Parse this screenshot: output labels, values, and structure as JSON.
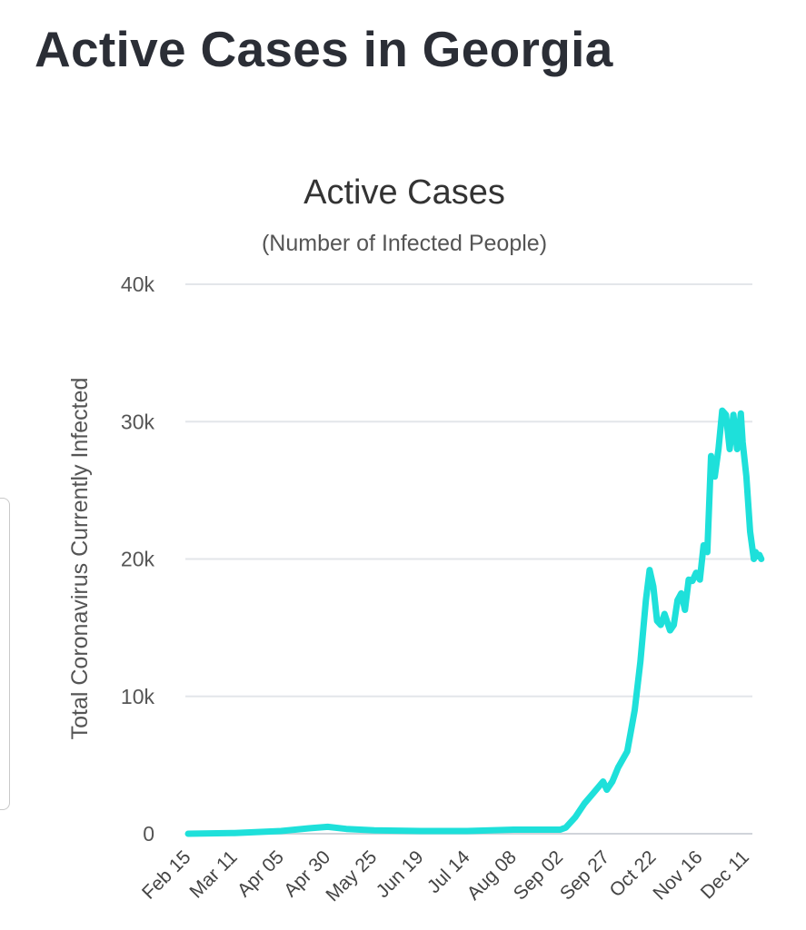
{
  "header": {
    "title": "Active Cases in Georgia"
  },
  "chart_data": {
    "type": "line",
    "title": "Active Cases",
    "subtitle": "(Number of Infected People)",
    "xlabel": "",
    "ylabel": "Total Coronavirus Currently Infected",
    "ylim": [
      0,
      40000
    ],
    "y_ticks": [
      0,
      10000,
      20000,
      30000,
      40000
    ],
    "y_tick_labels": [
      "0",
      "10k",
      "20k",
      "30k",
      "40k"
    ],
    "x_tick_labels": [
      "Feb 15",
      "Mar 11",
      "Apr 05",
      "Apr 30",
      "May 25",
      "Jun 19",
      "Jul 14",
      "Aug 08",
      "Sep 02",
      "Sep 27",
      "Oct 22",
      "Nov 16",
      "Dec 11"
    ],
    "grid": true,
    "legend": "none",
    "series": [
      {
        "color": "#1ee0da",
        "x": [
          "Feb 15",
          "Mar 11",
          "Apr 05",
          "Apr 20",
          "Apr 30",
          "May 10",
          "May 25",
          "Jun 19",
          "Jul 14",
          "Aug 08",
          "Aug 20",
          "Sep 02",
          "Sep 05",
          "Sep 10",
          "Sep 15",
          "Sep 20",
          "Sep 25",
          "Sep 27",
          "Sep 30",
          "Oct 03",
          "Oct 08",
          "Oct 12",
          "Oct 15",
          "Oct 18",
          "Oct 20",
          "Oct 22",
          "Oct 24",
          "Oct 26",
          "Oct 28",
          "Oct 31",
          "Nov 02",
          "Nov 04",
          "Nov 06",
          "Nov 08",
          "Nov 10",
          "Nov 12",
          "Nov 14",
          "Nov 16",
          "Nov 18",
          "Nov 20",
          "Nov 22",
          "Nov 24",
          "Nov 26",
          "Nov 28",
          "Nov 30",
          "Dec 02",
          "Dec 04",
          "Dec 06",
          "Dec 08",
          "Dec 09",
          "Dec 11",
          "Dec 13",
          "Dec 15",
          "Dec 16",
          "Dec 17",
          "Dec 18",
          "Dec 19"
        ],
        "values": [
          0,
          50,
          200,
          400,
          500,
          350,
          250,
          200,
          200,
          300,
          300,
          300,
          450,
          1200,
          2200,
          3000,
          3800,
          3200,
          3800,
          4800,
          6000,
          9000,
          12500,
          17000,
          19200,
          18000,
          15500,
          15200,
          16000,
          14800,
          15200,
          17000,
          17500,
          16300,
          18500,
          18400,
          19000,
          18500,
          21000,
          20500,
          27500,
          26000,
          28000,
          30800,
          30500,
          28000,
          30500,
          28000,
          30600,
          28500,
          26000,
          22000,
          20000,
          20500,
          20200,
          20300,
          20000
        ]
      }
    ]
  }
}
